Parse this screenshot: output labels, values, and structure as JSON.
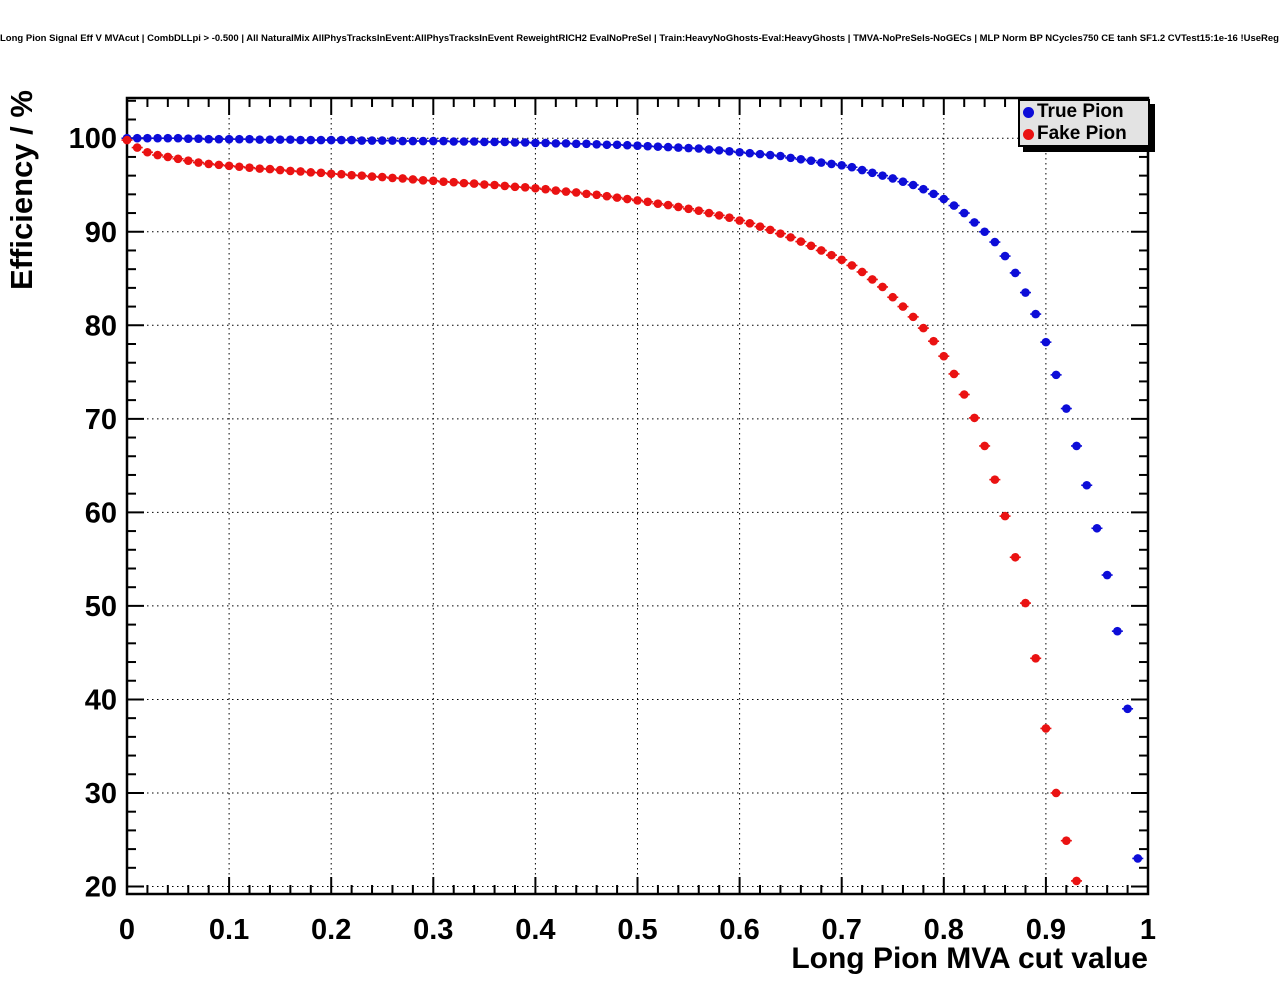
{
  "canvas": {
    "background": "#ffffff"
  },
  "title": "Long Pion Signal Eff V MVAcut | CombDLLpi > -0.500 | All NaturalMix AllPhysTracksInEvent:AllPhysTracksInEvent ReweightRICH2 EvalNoPreSel | Train:HeavyNoGhosts-Eval:HeavyGhosts | TMVA-NoPreSels-NoGECs | MLP Norm BP NCycles750 CE tanh SF1.2 CVTest15:1e-16 !UseReg",
  "chart_data": {
    "type": "scatter",
    "title": "Long Pion Signal Eff V MVAcut | CombDLLpi > -0.500 | All NaturalMix AllPhysTracksInEvent:AllPhysTracksInEvent ReweightRICH2 EvalNoPreSel | Train:HeavyNoGhosts-Eval:HeavyGhosts | TMVA-NoPreSels-NoGECs | MLP Norm BP NCycles750 CE tanh SF1.2 CVTest15:1e-16 !UseReg",
    "xlabel": "Long Pion MVA cut value",
    "ylabel": "Efficiency / %",
    "xlim": [
      0,
      1
    ],
    "ylim": [
      19.2,
      104.3
    ],
    "grid": "dotted",
    "x_tick_values": [
      0,
      0.1,
      0.2,
      0.3,
      0.4,
      0.5,
      0.6,
      0.7,
      0.8,
      0.9,
      1
    ],
    "x_tick_labels": [
      "0",
      "0.1",
      "0.2",
      "0.3",
      "0.4",
      "0.5",
      "0.6",
      "0.7",
      "0.8",
      "0.9",
      "1"
    ],
    "y_tick_values": [
      20,
      30,
      40,
      50,
      60,
      70,
      80,
      90,
      100
    ],
    "y_tick_labels": [
      "20",
      "30",
      "40",
      "50",
      "60",
      "70",
      "80",
      "90",
      "100"
    ],
    "x_minor_step": 0.02,
    "y_minor_step": 2,
    "marker": "filled-circle-with-x-error-bars",
    "legend": {
      "position": "top-right",
      "entries": [
        {
          "label": "True Pion",
          "color": "#0d0dd8"
        },
        {
          "label": "Fake Pion",
          "color": "#ea1212"
        }
      ]
    },
    "series": [
      {
        "name": "True Pion",
        "color": "#0d0dd8",
        "points": [
          [
            0,
            100
          ],
          [
            0.01,
            100
          ],
          [
            0.02,
            100
          ],
          [
            0.03,
            100
          ],
          [
            0.04,
            100
          ],
          [
            0.05,
            100
          ],
          [
            0.06,
            99.95
          ],
          [
            0.07,
            99.95
          ],
          [
            0.08,
            99.9
          ],
          [
            0.09,
            99.9
          ],
          [
            0.1,
            99.9
          ],
          [
            0.11,
            99.9
          ],
          [
            0.12,
            99.9
          ],
          [
            0.13,
            99.85
          ],
          [
            0.14,
            99.85
          ],
          [
            0.15,
            99.85
          ],
          [
            0.16,
            99.85
          ],
          [
            0.17,
            99.8
          ],
          [
            0.18,
            99.8
          ],
          [
            0.19,
            99.8
          ],
          [
            0.2,
            99.8
          ],
          [
            0.21,
            99.8
          ],
          [
            0.22,
            99.8
          ],
          [
            0.23,
            99.75
          ],
          [
            0.24,
            99.75
          ],
          [
            0.25,
            99.75
          ],
          [
            0.26,
            99.75
          ],
          [
            0.27,
            99.7
          ],
          [
            0.28,
            99.7
          ],
          [
            0.29,
            99.7
          ],
          [
            0.3,
            99.7
          ],
          [
            0.31,
            99.7
          ],
          [
            0.32,
            99.65
          ],
          [
            0.33,
            99.65
          ],
          [
            0.34,
            99.65
          ],
          [
            0.35,
            99.6
          ],
          [
            0.36,
            99.6
          ],
          [
            0.37,
            99.6
          ],
          [
            0.38,
            99.55
          ],
          [
            0.39,
            99.55
          ],
          [
            0.4,
            99.5
          ],
          [
            0.41,
            99.5
          ],
          [
            0.42,
            99.45
          ],
          [
            0.43,
            99.45
          ],
          [
            0.44,
            99.4
          ],
          [
            0.45,
            99.4
          ],
          [
            0.46,
            99.35
          ],
          [
            0.47,
            99.3
          ],
          [
            0.48,
            99.3
          ],
          [
            0.49,
            99.25
          ],
          [
            0.5,
            99.2
          ],
          [
            0.51,
            99.15
          ],
          [
            0.52,
            99.1
          ],
          [
            0.53,
            99.05
          ],
          [
            0.54,
            99
          ],
          [
            0.55,
            98.95
          ],
          [
            0.56,
            98.9
          ],
          [
            0.57,
            98.8
          ],
          [
            0.58,
            98.7
          ],
          [
            0.59,
            98.6
          ],
          [
            0.6,
            98.5
          ],
          [
            0.61,
            98.4
          ],
          [
            0.62,
            98.3
          ],
          [
            0.63,
            98.2
          ],
          [
            0.64,
            98.1
          ],
          [
            0.65,
            97.9
          ],
          [
            0.66,
            97.75
          ],
          [
            0.67,
            97.6
          ],
          [
            0.68,
            97.4
          ],
          [
            0.69,
            97.25
          ],
          [
            0.7,
            97.1
          ],
          [
            0.71,
            96.9
          ],
          [
            0.72,
            96.6
          ],
          [
            0.73,
            96.3
          ],
          [
            0.74,
            96
          ],
          [
            0.75,
            95.7
          ],
          [
            0.76,
            95.35
          ],
          [
            0.77,
            95
          ],
          [
            0.78,
            94.55
          ],
          [
            0.79,
            94.05
          ],
          [
            0.8,
            93.5
          ],
          [
            0.81,
            92.8
          ],
          [
            0.82,
            92
          ],
          [
            0.83,
            91
          ],
          [
            0.84,
            90
          ],
          [
            0.85,
            88.9
          ],
          [
            0.86,
            87.4
          ],
          [
            0.87,
            85.6
          ],
          [
            0.88,
            83.5
          ],
          [
            0.89,
            81.2
          ],
          [
            0.9,
            78.2
          ],
          [
            0.91,
            74.7
          ],
          [
            0.92,
            71.1
          ],
          [
            0.93,
            67.1
          ],
          [
            0.94,
            62.9
          ],
          [
            0.95,
            58.3
          ],
          [
            0.96,
            53.3
          ],
          [
            0.97,
            47.3
          ],
          [
            0.98,
            39
          ],
          [
            0.99,
            23
          ]
        ]
      },
      {
        "name": "Fake Pion",
        "color": "#ea1212",
        "points": [
          [
            0,
            99.8
          ],
          [
            0.01,
            99
          ],
          [
            0.02,
            98.5
          ],
          [
            0.03,
            98.2
          ],
          [
            0.04,
            98
          ],
          [
            0.05,
            97.8
          ],
          [
            0.06,
            97.6
          ],
          [
            0.07,
            97.4
          ],
          [
            0.08,
            97.25
          ],
          [
            0.09,
            97.15
          ],
          [
            0.1,
            97.05
          ],
          [
            0.11,
            96.95
          ],
          [
            0.12,
            96.85
          ],
          [
            0.13,
            96.75
          ],
          [
            0.14,
            96.7
          ],
          [
            0.15,
            96.6
          ],
          [
            0.16,
            96.5
          ],
          [
            0.17,
            96.45
          ],
          [
            0.18,
            96.35
          ],
          [
            0.19,
            96.3
          ],
          [
            0.2,
            96.2
          ],
          [
            0.21,
            96.15
          ],
          [
            0.22,
            96.05
          ],
          [
            0.23,
            96
          ],
          [
            0.24,
            95.9
          ],
          [
            0.25,
            95.85
          ],
          [
            0.26,
            95.75
          ],
          [
            0.27,
            95.7
          ],
          [
            0.28,
            95.6
          ],
          [
            0.29,
            95.5
          ],
          [
            0.3,
            95.45
          ],
          [
            0.31,
            95.35
          ],
          [
            0.32,
            95.3
          ],
          [
            0.33,
            95.2
          ],
          [
            0.34,
            95.15
          ],
          [
            0.35,
            95.05
          ],
          [
            0.36,
            95
          ],
          [
            0.37,
            94.9
          ],
          [
            0.38,
            94.8
          ],
          [
            0.39,
            94.75
          ],
          [
            0.4,
            94.65
          ],
          [
            0.41,
            94.55
          ],
          [
            0.42,
            94.4
          ],
          [
            0.43,
            94.3
          ],
          [
            0.44,
            94.2
          ],
          [
            0.45,
            94.05
          ],
          [
            0.46,
            93.95
          ],
          [
            0.47,
            93.8
          ],
          [
            0.48,
            93.65
          ],
          [
            0.49,
            93.5
          ],
          [
            0.5,
            93.35
          ],
          [
            0.51,
            93.2
          ],
          [
            0.52,
            93
          ],
          [
            0.53,
            92.85
          ],
          [
            0.54,
            92.65
          ],
          [
            0.55,
            92.45
          ],
          [
            0.56,
            92.25
          ],
          [
            0.57,
            92
          ],
          [
            0.58,
            91.75
          ],
          [
            0.59,
            91.5
          ],
          [
            0.6,
            91.2
          ],
          [
            0.61,
            90.9
          ],
          [
            0.62,
            90.55
          ],
          [
            0.63,
            90.2
          ],
          [
            0.64,
            89.8
          ],
          [
            0.65,
            89.4
          ],
          [
            0.66,
            88.95
          ],
          [
            0.67,
            88.5
          ],
          [
            0.68,
            88
          ],
          [
            0.69,
            87.5
          ],
          [
            0.7,
            87
          ],
          [
            0.71,
            86.4
          ],
          [
            0.72,
            85.7
          ],
          [
            0.73,
            84.9
          ],
          [
            0.74,
            84.1
          ],
          [
            0.75,
            83
          ],
          [
            0.76,
            82
          ],
          [
            0.77,
            80.9
          ],
          [
            0.78,
            79.7
          ],
          [
            0.79,
            78.3
          ],
          [
            0.8,
            76.7
          ],
          [
            0.81,
            74.8
          ],
          [
            0.82,
            72.6
          ],
          [
            0.83,
            70.1
          ],
          [
            0.84,
            67.1
          ],
          [
            0.85,
            63.5
          ],
          [
            0.86,
            59.6
          ],
          [
            0.87,
            55.2
          ],
          [
            0.88,
            50.3
          ],
          [
            0.89,
            44.4
          ],
          [
            0.9,
            36.9
          ],
          [
            0.91,
            30
          ],
          [
            0.92,
            24.9
          ],
          [
            0.93,
            20.6
          ]
        ]
      }
    ]
  }
}
